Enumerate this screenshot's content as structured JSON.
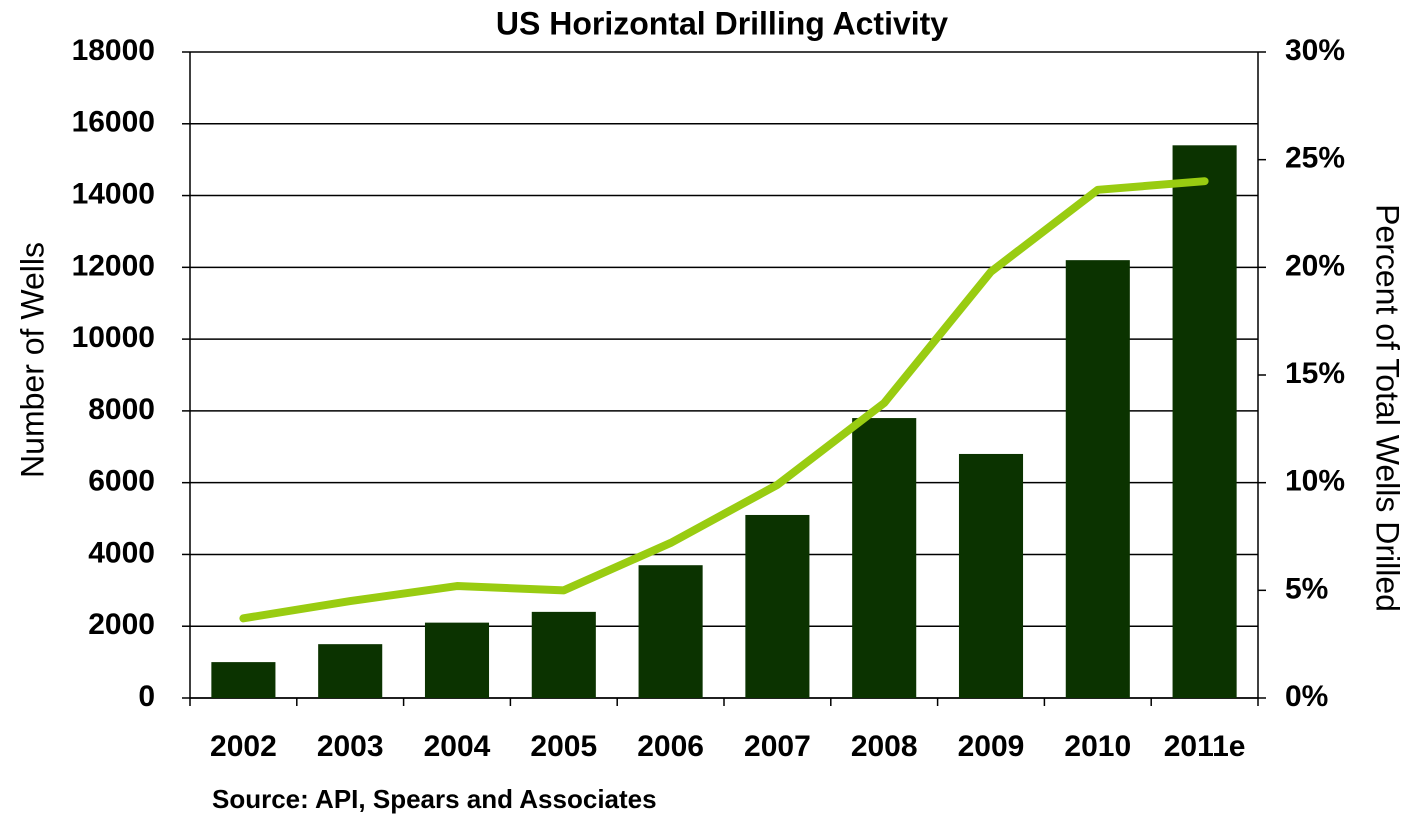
{
  "chart_data": {
    "type": "bar",
    "title": "US Horizontal Drilling Activity",
    "ylabel": "Number of Wells",
    "y2label": "Percent of Total Wells Drilled",
    "source": "Source: API, Spears and Associates",
    "categories": [
      "2002",
      "2003",
      "2004",
      "2005",
      "2006",
      "2007",
      "2008",
      "2009",
      "2010",
      "2011e"
    ],
    "series": [
      {
        "type": "bar",
        "color": "#0b3300",
        "values": [
          1000,
          1500,
          2100,
          2400,
          3700,
          5100,
          7800,
          6800,
          12200,
          15400
        ]
      },
      {
        "type": "line",
        "axis": "y2",
        "color": "#99cc11",
        "values": [
          3.7,
          4.5,
          5.2,
          5.0,
          7.2,
          9.9,
          13.7,
          19.8,
          23.6,
          24.0
        ]
      }
    ],
    "ylim": [
      0,
      18000
    ],
    "yticks": [
      0,
      2000,
      4000,
      6000,
      8000,
      10000,
      12000,
      14000,
      16000,
      18000
    ],
    "y2lim": [
      0,
      30
    ],
    "y2ticks": [
      {
        "value": 0,
        "label": "0%"
      },
      {
        "value": 5,
        "label": "5%"
      },
      {
        "value": 10,
        "label": "10%"
      },
      {
        "value": 15,
        "label": "15%"
      },
      {
        "value": 20,
        "label": "20%"
      },
      {
        "value": 25,
        "label": "25%"
      },
      {
        "value": 30,
        "label": "30%"
      }
    ],
    "grid": true
  }
}
